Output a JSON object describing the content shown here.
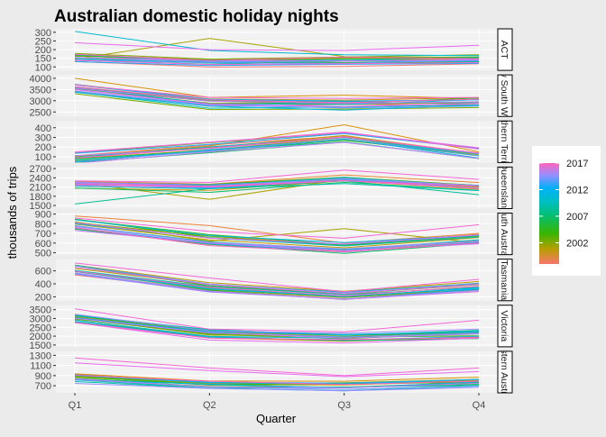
{
  "chart_data": {
    "type": "line",
    "title": "Australian domestic holiday nights",
    "xlabel": "Quarter",
    "ylabel": "thousands of trips",
    "x": [
      "Q1",
      "Q2",
      "Q3",
      "Q4"
    ],
    "colour_scale": {
      "start_year": 1998,
      "end_year": 2017,
      "legend_breaks": [
        "2017",
        "2012",
        "2007",
        "2002"
      ],
      "colors": [
        "#f8766d",
        "#d89000",
        "#a3a500",
        "#39b600",
        "#00bf7d",
        "#00bfc4",
        "#00b0f6",
        "#9590ff",
        "#e76bf3",
        "#ff62bc"
      ]
    },
    "grid": true,
    "legend_position": "right",
    "panels": [
      {
        "label": "ACT",
        "ylim": [
          80,
          320
        ],
        "yticks": [
          "100",
          "150",
          "200",
          "250",
          "300"
        ],
        "profile": [
          150,
          130,
          135,
          140
        ],
        "specials": [
          {
            "year": 2002,
            "values": [
              145,
              265,
              160,
              150
            ]
          },
          {
            "year": 2009,
            "values": [
              305,
              195,
              170,
              165
            ]
          },
          {
            "year": 2015,
            "values": [
              240,
              200,
              195,
              225
            ]
          }
        ]
      },
      {
        "label": "New South Wales",
        "ylim": [
          2300,
          4150
        ],
        "yticks": [
          "2500",
          "3000",
          "3500",
          "4000"
        ],
        "profile": [
          3500,
          2850,
          2800,
          2900
        ],
        "specials": [
          {
            "year": 2000,
            "values": [
              4000,
              3150,
              3250,
              3100
            ]
          },
          {
            "year": 2016,
            "values": [
              3700,
              3150,
              3100,
              3150
            ]
          }
        ]
      },
      {
        "label": "Northern Territory",
        "ylim": [
          40,
          470
        ],
        "yticks": [
          "100",
          "200",
          "300",
          "400"
        ],
        "profile": [
          95,
          200,
          310,
          140
        ],
        "specials": [
          {
            "year": 2000,
            "values": [
              100,
              210,
              430,
              150
            ]
          }
        ]
      },
      {
        "label": "Queensland",
        "ylim": [
          1400,
          2750
        ],
        "yticks": [
          "1500",
          "1800",
          "2100",
          "2400",
          "2700"
        ],
        "profile": [
          2150,
          2050,
          2300,
          2050
        ],
        "specials": [
          {
            "year": 2002,
            "values": [
              2250,
              1700,
              2350,
              2100
            ]
          },
          {
            "year": 2007,
            "values": [
              1550,
              2050,
              2300,
              1850
            ]
          },
          {
            "year": 2016,
            "values": [
              2300,
              2250,
              2650,
              2350
            ]
          }
        ]
      },
      {
        "label": "South Australia",
        "ylim": [
          480,
          910
        ],
        "yticks": [
          "500",
          "600",
          "700",
          "800",
          "900"
        ],
        "profile": [
          790,
          630,
          550,
          650
        ],
        "specials": [
          {
            "year": 1999,
            "values": [
              880,
              780,
              600,
              700
            ]
          },
          {
            "year": 2002,
            "values": [
              820,
              620,
              750,
              600
            ]
          },
          {
            "year": 2016,
            "values": [
              860,
              720,
              650,
              790
            ]
          }
        ]
      },
      {
        "label": "Tasmania",
        "ylim": [
          140,
          780
        ],
        "yticks": [
          "200",
          "400",
          "600"
        ],
        "profile": [
          620,
          350,
          220,
          360
        ],
        "specials": [
          {
            "year": 2016,
            "values": [
              720,
              490,
              280,
              470
            ]
          }
        ]
      },
      {
        "label": "Victoria",
        "ylim": [
          1400,
          3750
        ],
        "yticks": [
          "1500",
          "2000",
          "2500",
          "3000",
          "3500"
        ],
        "profile": [
          2950,
          2100,
          1900,
          2100
        ],
        "specials": [
          {
            "year": 2016,
            "values": [
              3550,
              2400,
              2250,
              2900
            ]
          }
        ]
      },
      {
        "label": "Western Australia",
        "ylim": [
          560,
          1380
        ],
        "yticks": [
          "700",
          "900",
          "1100",
          "1300"
        ],
        "profile": [
          850,
          720,
          700,
          760
        ],
        "specials": [
          {
            "year": 2016,
            "values": [
              1250,
              1050,
              900,
              1050
            ]
          },
          {
            "year": 2015,
            "values": [
              1150,
              1000,
              880,
              980
            ]
          }
        ]
      }
    ]
  }
}
